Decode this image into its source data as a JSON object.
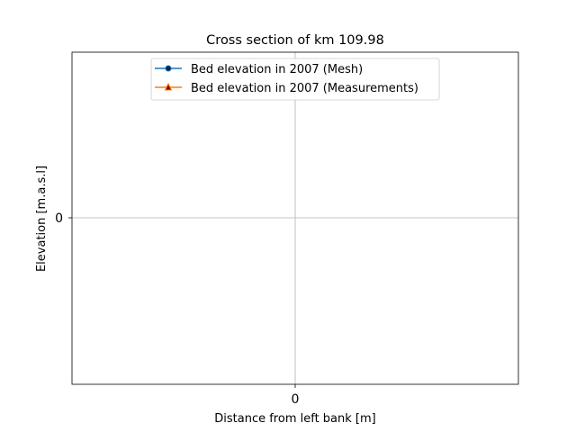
{
  "chart_data": {
    "type": "line",
    "title": "Cross section of km 109.98",
    "xlabel": "Distance from left bank [m]",
    "ylabel": "Elevation [m.a.s.l]",
    "x_ticks": [
      "0"
    ],
    "y_ticks": [
      "0"
    ],
    "xlim": [
      -0.055,
      0.055
    ],
    "ylim": [
      -0.055,
      0.055
    ],
    "grid": true,
    "legend_position": "upper center",
    "series": [
      {
        "name": "Bed elevation in 2007 (Mesh)",
        "marker": "circle",
        "color": "#1f77b4",
        "marker_face": "#0b1f4d",
        "x": [],
        "y": []
      },
      {
        "name": "Bed elevation in 2007 (Measurements)",
        "marker": "triangle",
        "color": "#ff7f0e",
        "marker_face": "#8b0000",
        "x": [],
        "y": []
      }
    ]
  }
}
